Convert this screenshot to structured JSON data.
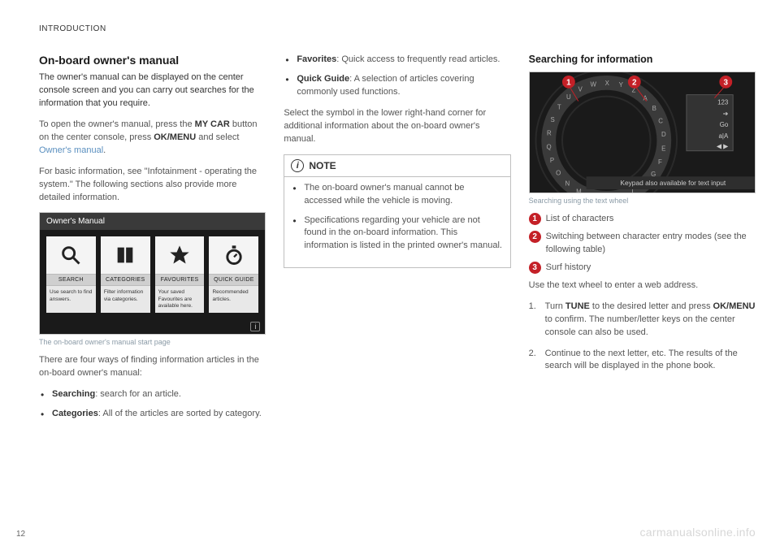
{
  "running_head": "INTRODUCTION",
  "page_number": "12",
  "watermark": "carmanualsonline.info",
  "col1": {
    "h2": "On-board owner's manual",
    "lead": "The owner's manual can be displayed on the center console screen and you can carry out searches for the information that you require.",
    "p1a": "To open the owner's manual, press the ",
    "p1b": "MY CAR",
    "p1c": " button on the center console, press ",
    "p1d": "OK/MENU",
    "p1e": " and select ",
    "p1f": "Owner's manual",
    "p1g": ".",
    "p2": "For basic information, see \"Infotainment - operating the system.\" The following sections also provide more detailed information.",
    "figure": {
      "title": "Owner's Manual",
      "tiles": [
        {
          "label": "SEARCH",
          "desc": "Use search to find answers."
        },
        {
          "label": "CATEGORIES",
          "desc": "Filter information via categories."
        },
        {
          "label": "FAVOURITES",
          "desc": "Your saved Favourites are available here."
        },
        {
          "label": "QUICK GUIDE",
          "desc": "Recommended articles."
        }
      ]
    },
    "caption": "The on-board owner's manual start page",
    "p3": "There are four ways of finding information articles in the on-board owner's manual:",
    "bullets": [
      {
        "b": "Searching",
        "rest": ": search for an article."
      },
      {
        "b": "Categories",
        "rest": ": All of the articles are sorted by category."
      }
    ]
  },
  "col2": {
    "bullets": [
      {
        "b": "Favorites",
        "rest": ": Quick access to frequently read articles."
      },
      {
        "b": "Quick Guide",
        "rest": ": A selection of articles covering commonly used functions."
      }
    ],
    "p1": "Select the symbol in the lower right-hand corner for additional information about the on-board owner's manual.",
    "note_title": "NOTE",
    "note_items": [
      "The on-board owner's manual cannot be accessed while the vehicle is moving.",
      "Specifications regarding your vehicle are not found in the on-board information. This information is listed in the printed owner's manual."
    ]
  },
  "col3": {
    "h3": "Searching for information",
    "wheel": {
      "letters": [
        "P",
        "Q",
        "R",
        "S",
        "T",
        "U",
        "V",
        "W",
        "X",
        "Y",
        "Z",
        "A",
        "B",
        "C",
        "D",
        "E",
        "F",
        "G",
        "H",
        "I",
        "J",
        "K",
        "L",
        "M",
        "N",
        "O"
      ],
      "panel": [
        "123",
        "➔",
        "Go",
        "a|A",
        "◀ ▶"
      ],
      "bottom_bar": "Keypad also available for text input",
      "callouts": [
        "1",
        "2",
        "3"
      ],
      "colors": {
        "badge": "#c42027",
        "bg": "#1a1a1a",
        "ring": "#4a4a4a",
        "text": "#aaaaaa"
      }
    },
    "caption": "Searching using the text wheel",
    "badge_rows": [
      {
        "n": "1",
        "text": "List of characters"
      },
      {
        "n": "2",
        "text": "Switching between character entry modes (see the following table)"
      },
      {
        "n": "3",
        "text": "Surf history"
      }
    ],
    "p1": "Use the text wheel to enter a web address.",
    "steps": [
      {
        "a": "Turn ",
        "b": "TUNE",
        "c": " to the desired letter and press ",
        "d": "OK/MENU",
        "e": " to confirm. The number/letter keys on the center console can also be used."
      },
      {
        "full": "Continue to the next letter, etc. The results of the search will be displayed in the phone book."
      }
    ]
  }
}
